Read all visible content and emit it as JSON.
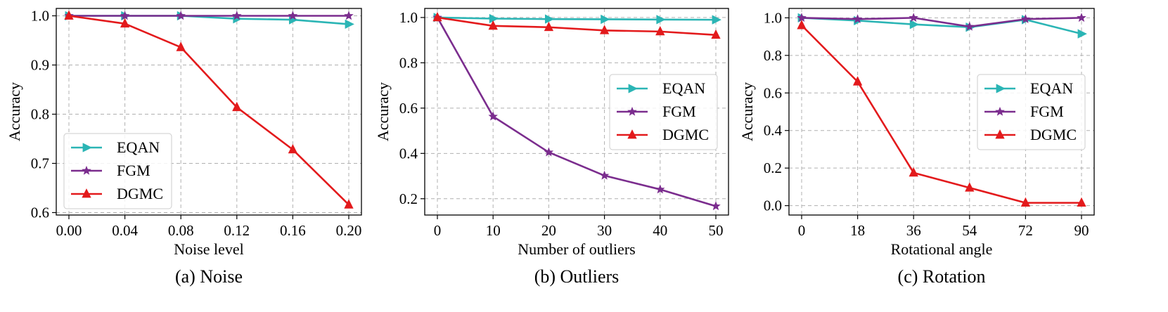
{
  "chart_data": [
    {
      "type": "line",
      "caption": "(a) Noise",
      "xlabel": "Noise level",
      "ylabel": "Accuracy",
      "x": [
        0.0,
        0.04,
        0.08,
        0.12,
        0.16,
        0.2
      ],
      "x_tick_labels": [
        "0.00",
        "0.04",
        "0.08",
        "0.12",
        "0.16",
        "0.20"
      ],
      "ylim": [
        0.595,
        1.015
      ],
      "y_ticks": [
        0.6,
        0.7,
        0.8,
        0.9,
        1.0
      ],
      "y_tick_labels": [
        "0.6",
        "0.7",
        "0.8",
        "0.9",
        "1.0"
      ],
      "legend_position": "bottom-left",
      "grid": true,
      "series": [
        {
          "name": "EQAN",
          "color": "#2bb5b5",
          "marker": "triangle-right",
          "values": [
            1.0,
            1.0,
            1.0,
            0.994,
            0.992,
            0.983
          ]
        },
        {
          "name": "FGM",
          "color": "#7b2d8e",
          "marker": "star",
          "values": [
            1.0,
            1.0,
            1.0,
            1.0,
            1.0,
            1.0
          ]
        },
        {
          "name": "DGMC",
          "color": "#e31a1c",
          "marker": "triangle-up",
          "values": [
            1.0,
            0.984,
            0.936,
            0.814,
            0.728,
            0.616
          ]
        }
      ]
    },
    {
      "type": "line",
      "caption": "(b) Outliers",
      "xlabel": "Number of outliers",
      "ylabel": "Accuracy",
      "x": [
        0,
        10,
        20,
        30,
        40,
        50
      ],
      "x_tick_labels": [
        "0",
        "10",
        "20",
        "30",
        "40",
        "50"
      ],
      "ylim": [
        0.128,
        1.04
      ],
      "y_ticks": [
        0.2,
        0.4,
        0.6,
        0.8,
        1.0
      ],
      "y_tick_labels": [
        "0.2",
        "0.4",
        "0.6",
        "0.8",
        "1.0"
      ],
      "legend_position": "center-right",
      "grid": true,
      "series": [
        {
          "name": "EQAN",
          "color": "#2bb5b5",
          "marker": "triangle-right",
          "values": [
            1.0,
            0.995,
            0.993,
            0.992,
            0.991,
            0.99
          ]
        },
        {
          "name": "FGM",
          "color": "#7b2d8e",
          "marker": "star",
          "values": [
            1.0,
            0.563,
            0.405,
            0.302,
            0.241,
            0.167
          ]
        },
        {
          "name": "DGMC",
          "color": "#e31a1c",
          "marker": "triangle-up",
          "values": [
            1.0,
            0.963,
            0.957,
            0.943,
            0.938,
            0.923
          ]
        }
      ]
    },
    {
      "type": "line",
      "caption": "(c) Rotation",
      "xlabel": "Rotational angle",
      "ylabel": "Accuracy",
      "x": [
        0,
        18,
        36,
        54,
        72,
        90
      ],
      "x_tick_labels": [
        "0",
        "18",
        "36",
        "54",
        "72",
        "90"
      ],
      "ylim": [
        -0.05,
        1.05
      ],
      "y_ticks": [
        0.0,
        0.2,
        0.4,
        0.6,
        0.8,
        1.0
      ],
      "y_tick_labels": [
        "0.0",
        "0.2",
        "0.4",
        "0.6",
        "0.8",
        "1.0"
      ],
      "legend_position": "center-right",
      "grid": true,
      "series": [
        {
          "name": "EQAN",
          "color": "#2bb5b5",
          "marker": "triangle-right",
          "values": [
            1.0,
            0.985,
            0.965,
            0.95,
            0.99,
            0.915
          ]
        },
        {
          "name": "FGM",
          "color": "#7b2d8e",
          "marker": "star",
          "values": [
            1.0,
            0.993,
            1.0,
            0.953,
            0.993,
            1.0
          ]
        },
        {
          "name": "DGMC",
          "color": "#e31a1c",
          "marker": "triangle-up",
          "values": [
            0.96,
            0.66,
            0.175,
            0.095,
            0.015,
            0.015
          ]
        }
      ]
    }
  ]
}
